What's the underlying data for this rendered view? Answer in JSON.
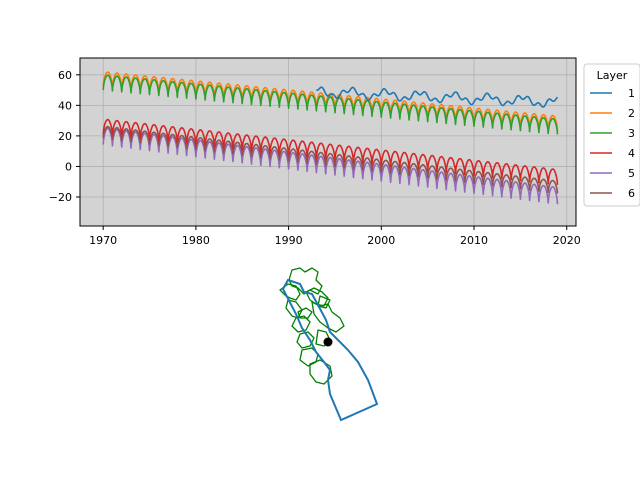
{
  "chart_data": [
    {
      "type": "line",
      "title": "",
      "xlabel": "",
      "ylabel": "",
      "xlim": [
        1967.5,
        2021.0
      ],
      "ylim": [
        -39,
        71
      ],
      "xticks": [
        1970,
        1980,
        1990,
        2000,
        2010,
        2020
      ],
      "yticks": [
        -20,
        0,
        20,
        40,
        60
      ],
      "ytick_labels": [
        "−20",
        "0",
        "20",
        "40",
        "60"
      ],
      "grid": true,
      "background": "#d3d3d3",
      "legend": {
        "title": "Layer",
        "placement": "outside-right"
      },
      "x_range_data": [
        1970,
        2019
      ],
      "series": [
        {
          "name": "1",
          "color": "#1f77b4",
          "base_start": 55,
          "base_end": 42,
          "amplitude": 1.5,
          "active_from": 1993,
          "notes": "before 1993 coincides with layer 3 curve"
        },
        {
          "name": "2",
          "color": "#ff7f0e",
          "base_start": 59,
          "base_end": 30,
          "amplitude": 10
        },
        {
          "name": "3",
          "color": "#2ca02c",
          "base_start": 57,
          "base_end": 28,
          "amplitude": 10
        },
        {
          "name": "4",
          "color": "#d62728",
          "base_start": 28,
          "base_end": -5,
          "amplitude": 10
        },
        {
          "name": "5",
          "color": "#9467bd",
          "base_start": 22,
          "base_end": -17,
          "amplitude": 11
        },
        {
          "name": "6",
          "color": "#8c564b",
          "base_start": 24,
          "base_end": -12,
          "amplitude": 8
        }
      ]
    },
    {
      "type": "map",
      "boundary_color": "#1f77b4",
      "subregion_color": "#008000",
      "marker_color": "#000000"
    }
  ]
}
